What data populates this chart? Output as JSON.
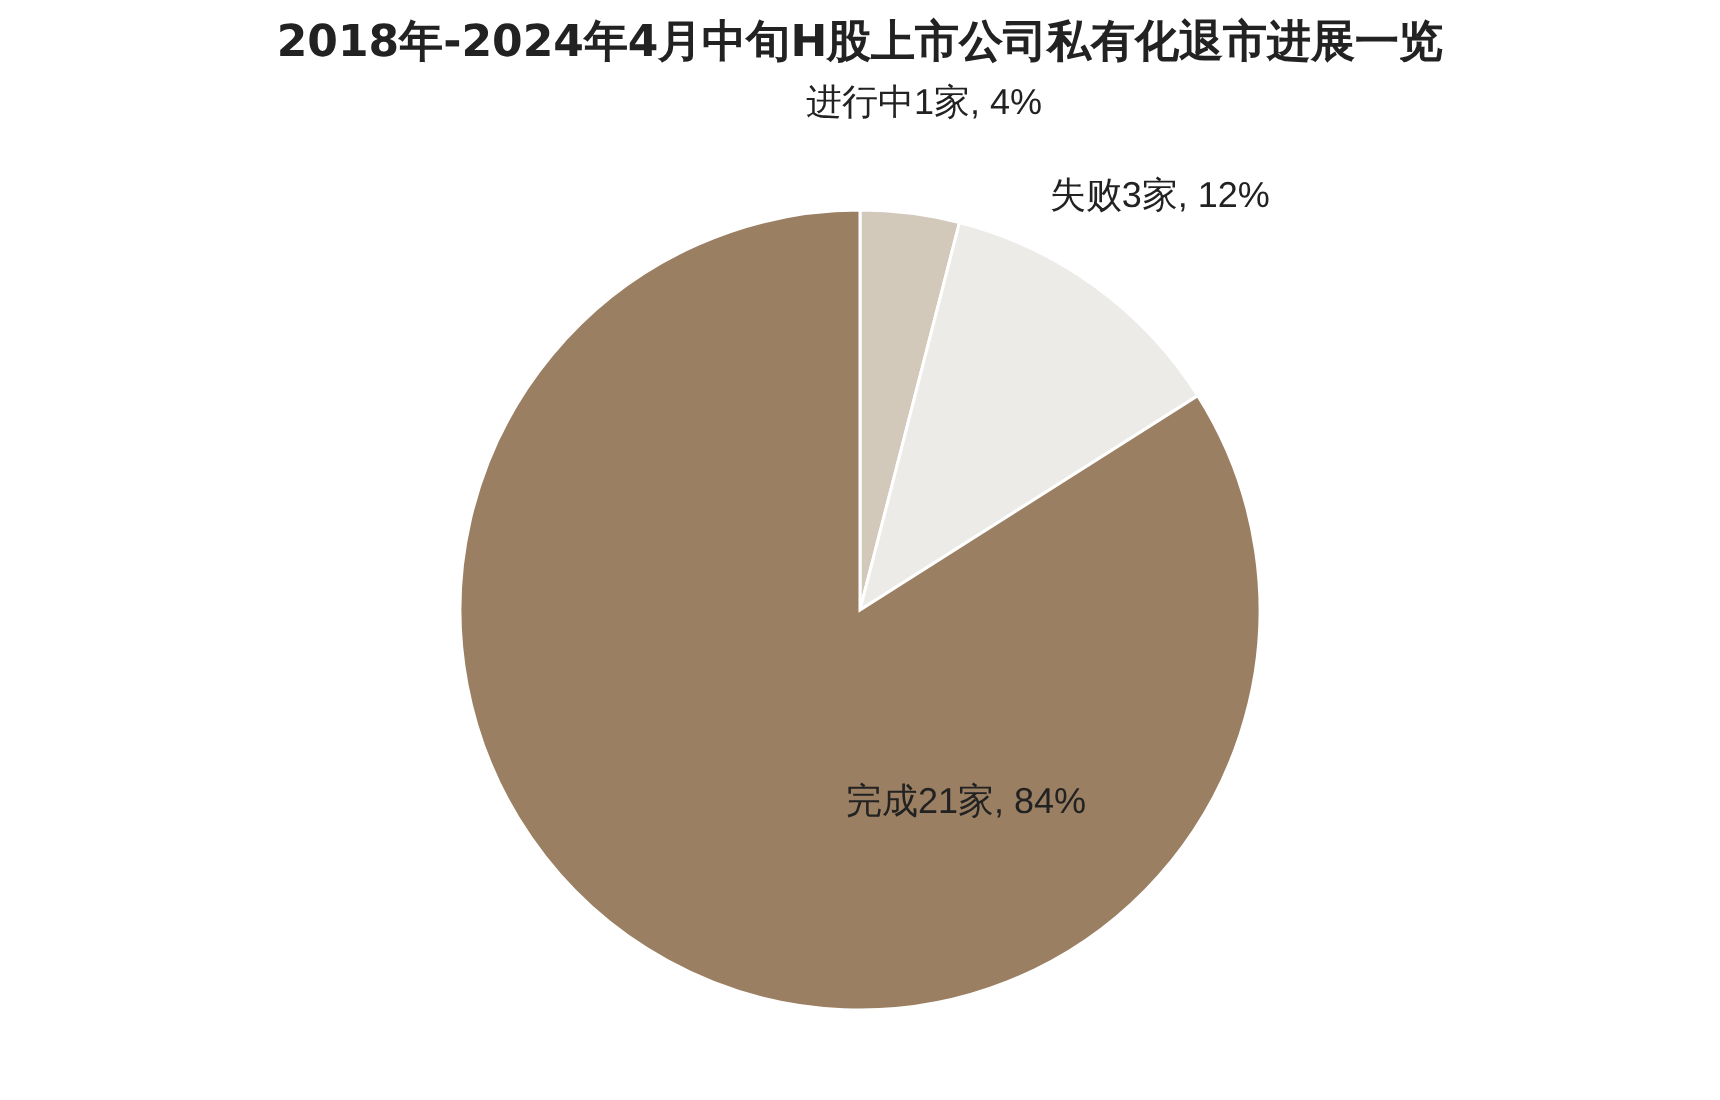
{
  "chart_data": {
    "type": "pie",
    "title": "2018年-2024年4月中旬H股上市公司私有化退市进展一览",
    "categories": [
      "进行中1家",
      "失败3家",
      "完成21家"
    ],
    "values": [
      4,
      12,
      84
    ],
    "value_labels": [
      "4%",
      "12%",
      "84%"
    ],
    "colors": [
      "#d3c9bb",
      "#ecebe8",
      "#9a7f62"
    ],
    "legend": false
  }
}
